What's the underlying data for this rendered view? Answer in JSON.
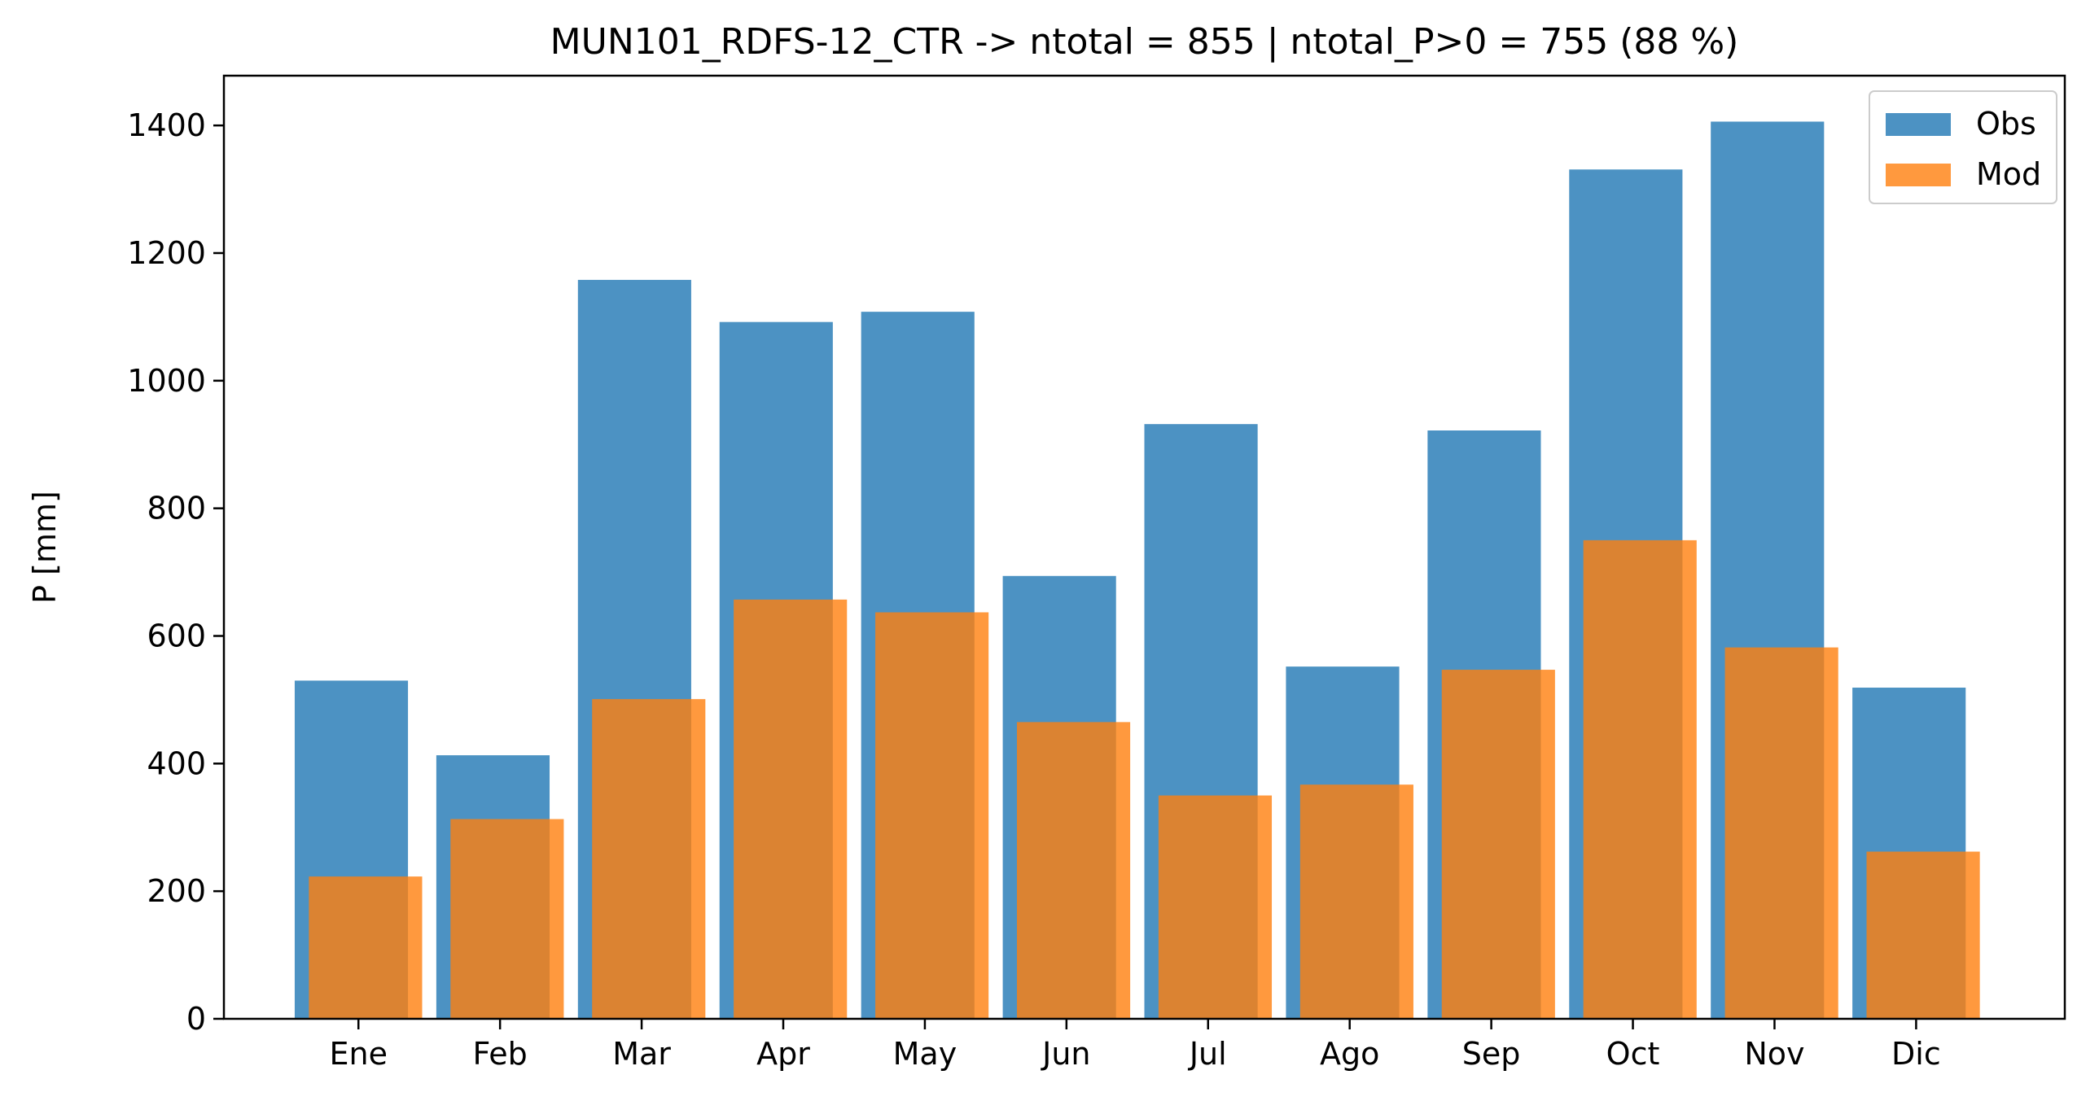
{
  "chart_data": {
    "type": "bar",
    "title": "MUN101_RDFS-12_CTR -> ntotal = 855 | ntotal_P>0 = 755 (88 %)",
    "xlabel": "",
    "ylabel": "P [mm]",
    "categories": [
      "Ene",
      "Feb",
      "Mar",
      "Apr",
      "May",
      "Jun",
      "Jul",
      "Ago",
      "Sep",
      "Oct",
      "Nov",
      "Dic"
    ],
    "series": [
      {
        "name": "Obs",
        "color": "#1f77b4",
        "values": [
          530,
          413,
          1158,
          1092,
          1108,
          694,
          932,
          552,
          922,
          1331,
          1406,
          519
        ]
      },
      {
        "name": "Mod",
        "color": "#ff7f0e",
        "values": [
          223,
          313,
          501,
          657,
          637,
          465,
          350,
          367,
          547,
          750,
          582,
          262
        ]
      }
    ],
    "ylim": [
      0,
      1478
    ],
    "yticks": [
      0,
      200,
      400,
      600,
      800,
      1000,
      1200,
      1400
    ],
    "grid": false,
    "legend": "top-right"
  }
}
